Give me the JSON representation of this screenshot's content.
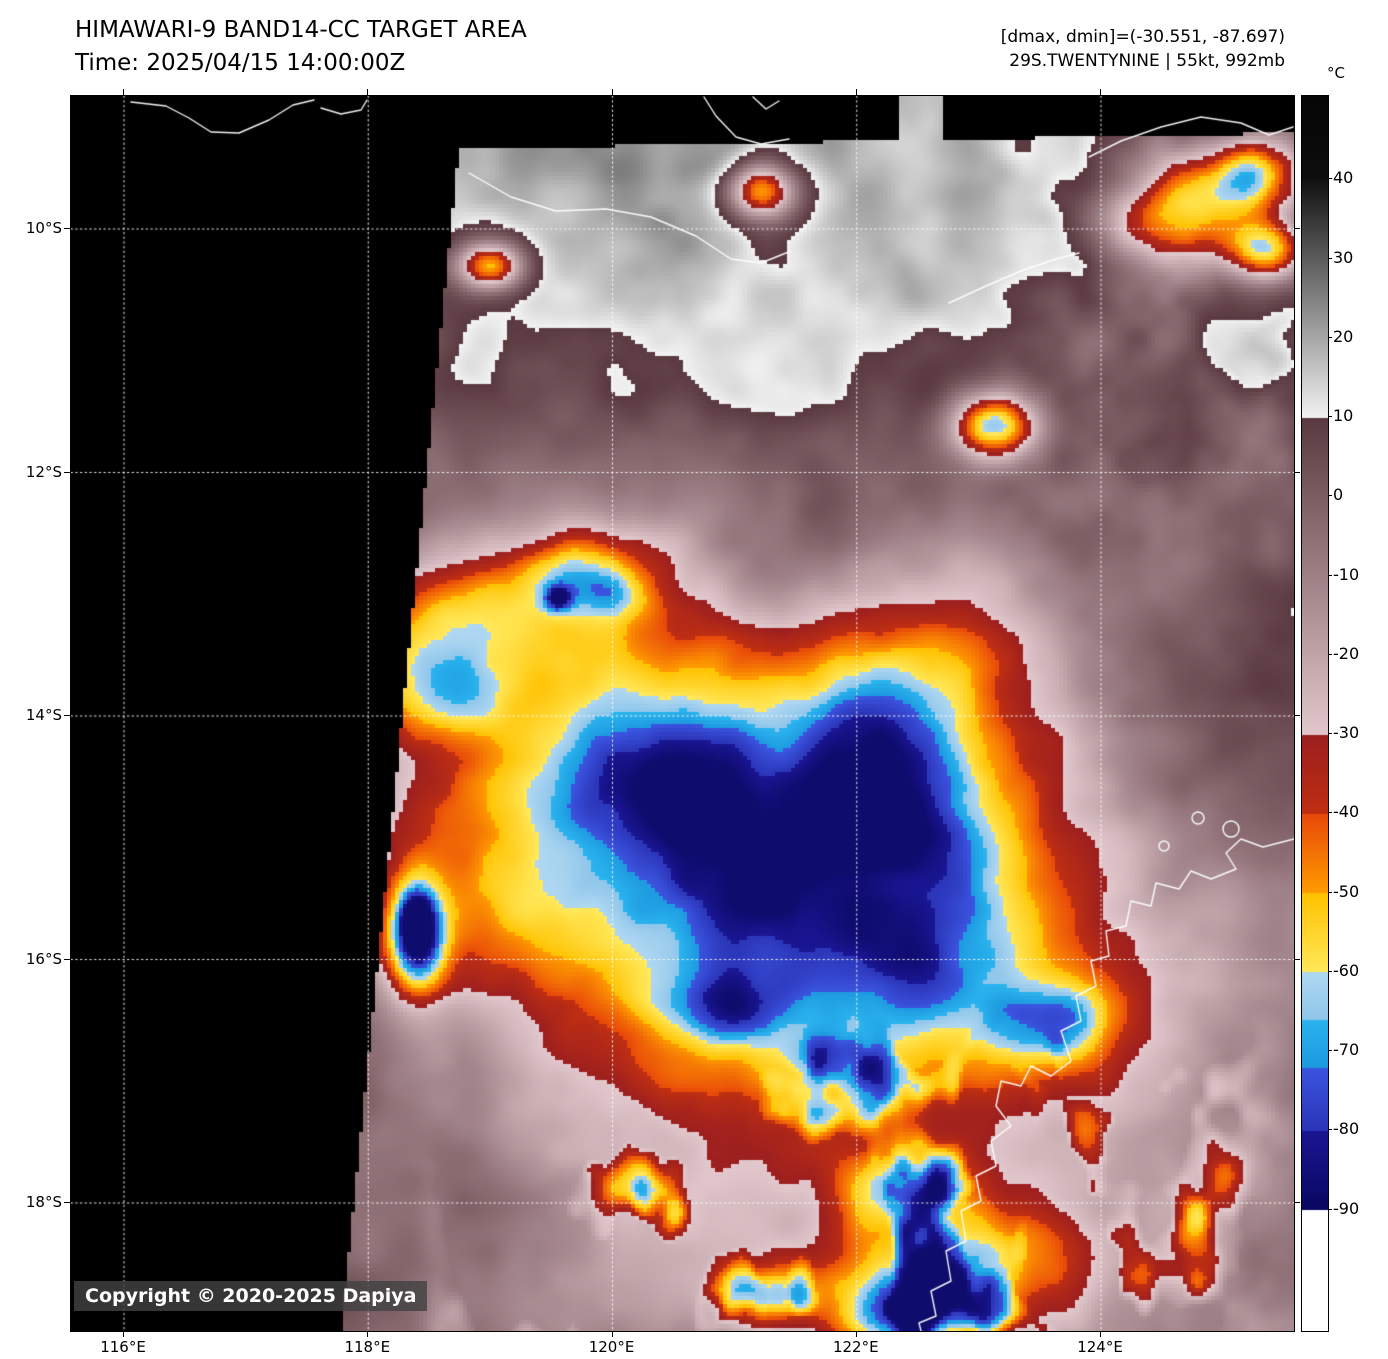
{
  "header": {
    "title": "HIMAWARI-9 BAND14-CC TARGET AREA",
    "time": "Time: 2025/04/15 14:00:00Z",
    "dmax_dmin": "[dmax, dmin]=(-30.551, -87.697)",
    "storm_info": "29S.TWENTYNINE | 55kt, 992mb"
  },
  "colorbar": {
    "unit": "°C",
    "tick_values": [
      40,
      30,
      20,
      10,
      0,
      -10,
      -20,
      -30,
      -40,
      -50,
      -60,
      -70,
      -80,
      -90
    ],
    "value_range": [
      50.5,
      -105.3
    ],
    "stops": [
      {
        "from": 50.5,
        "to": 40,
        "c1": "#060606",
        "c2": "#0e0e0e"
      },
      {
        "from": 40,
        "to": 10,
        "c1": "#121212",
        "c2": "#f2f2f2"
      },
      {
        "from": 10,
        "to": -30,
        "c1": "#5a3a40",
        "c2": "#e2c8cc"
      },
      {
        "from": -30,
        "to": -40,
        "c1": "#9c1f1f",
        "c2": "#bf2f12"
      },
      {
        "from": -40,
        "to": -50,
        "c1": "#e8490a",
        "c2": "#ff9c00"
      },
      {
        "from": -50,
        "to": -60,
        "c1": "#ffc200",
        "c2": "#ffe95c"
      },
      {
        "from": -60,
        "to": -66,
        "c1": "#b0d8f2",
        "c2": "#8fc6ea"
      },
      {
        "from": -66,
        "to": -72,
        "c1": "#2ab4ee",
        "c2": "#1e9ae0"
      },
      {
        "from": -72,
        "to": -80,
        "c1": "#3b55e0",
        "c2": "#2b35b8"
      },
      {
        "from": -80,
        "to": -90,
        "c1": "#1a1694",
        "c2": "#0a0860"
      },
      {
        "from": -90,
        "to": -105.3,
        "c1": "#ffffff",
        "c2": "#ffffff"
      }
    ]
  },
  "axes": {
    "lat_tick_labels": [
      "10°S",
      "12°S",
      "14°S",
      "16°S",
      "18°S"
    ],
    "lat_values": [
      10,
      12,
      14,
      16,
      18
    ],
    "lon_tick_labels": [
      "116°E",
      "118°E",
      "120°E",
      "122°E",
      "124°E"
    ],
    "lon_values": [
      116,
      118,
      120,
      122,
      124
    ]
  },
  "map": {
    "background": "#000000",
    "grid_color": "#ffffff",
    "coastline_color": "#ffffff"
  },
  "footer": {
    "copyright": "Copyright © 2020-2025 Dapiya"
  }
}
